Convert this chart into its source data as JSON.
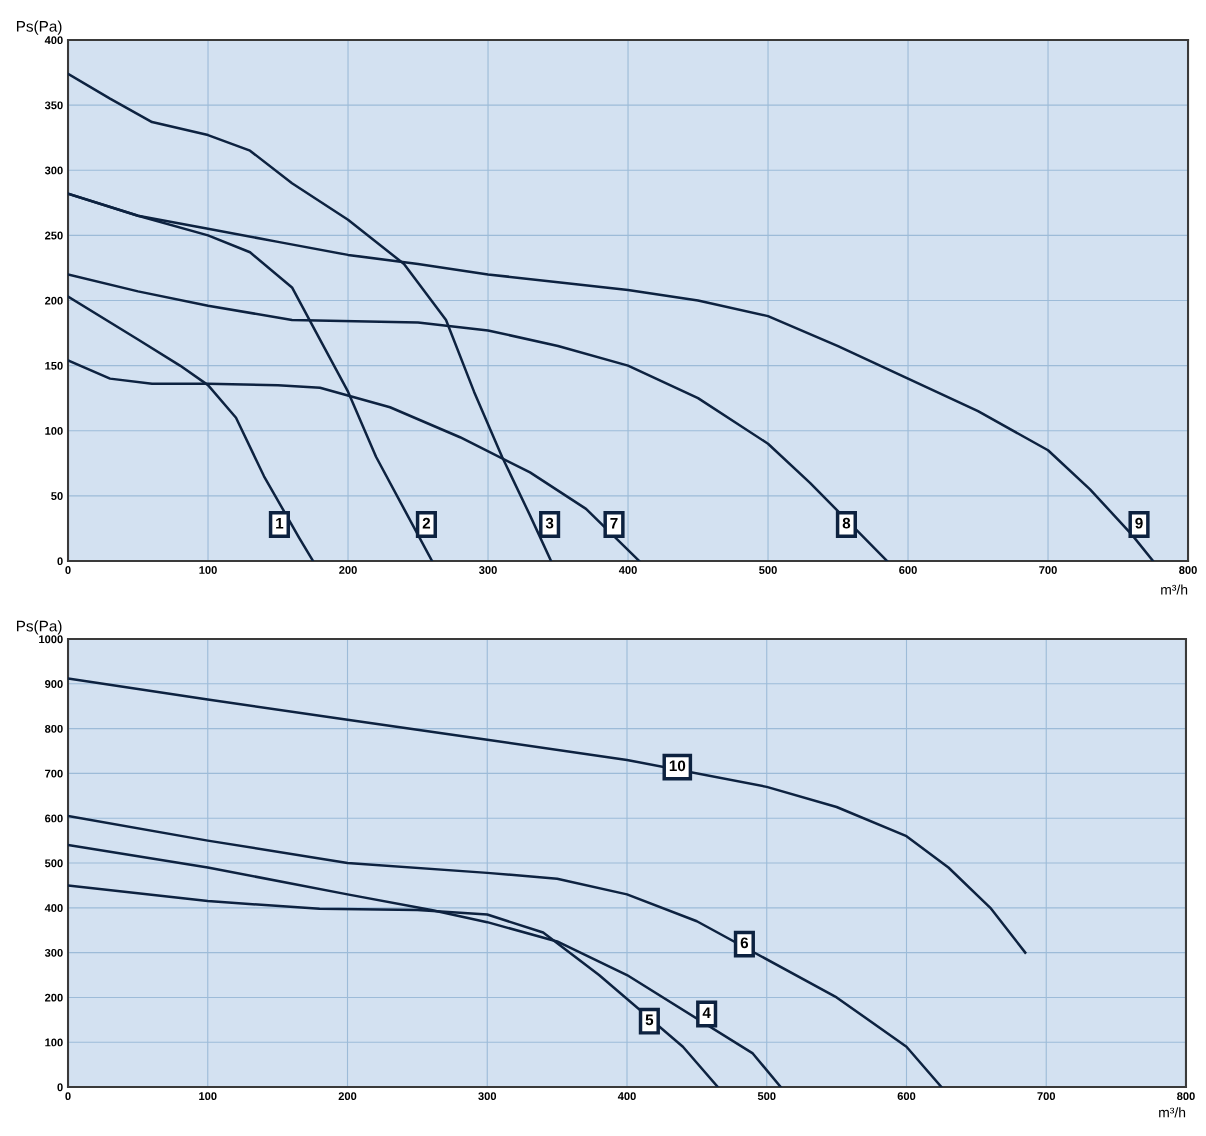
{
  "chart_data": [
    {
      "type": "line",
      "xlabel": "m³/h",
      "ylabel": "Ps(Pa)",
      "xlim": [
        0,
        800
      ],
      "ylim": [
        0,
        400
      ],
      "xticks": [
        0,
        100,
        200,
        300,
        400,
        500,
        600,
        700,
        800
      ],
      "yticks": [
        0,
        50,
        100,
        150,
        200,
        250,
        300,
        350,
        400
      ],
      "grid": true,
      "marker": "none",
      "line_style": "solid",
      "series": [
        {
          "color": "#0d2240",
          "x": [
            0,
            50,
            80,
            100,
            120,
            140,
            165,
            175
          ],
          "values": [
            203,
            170,
            150,
            135,
            110,
            65,
            18,
            0
          ]
        },
        {
          "color": "#0d2240",
          "x": [
            0,
            50,
            100,
            130,
            160,
            180,
            200,
            220,
            240,
            260
          ],
          "values": [
            282,
            265,
            250,
            237,
            210,
            170,
            130,
            80,
            40,
            0
          ]
        },
        {
          "color": "#0d2240",
          "x": [
            0,
            30,
            60,
            100,
            130,
            160,
            200,
            240,
            270,
            290,
            310,
            330,
            345
          ],
          "values": [
            374,
            355,
            337,
            327,
            315,
            290,
            262,
            228,
            185,
            130,
            80,
            35,
            0
          ]
        },
        {
          "color": "#0d2240",
          "x": [
            0,
            30,
            60,
            100,
            150,
            180,
            230,
            280,
            330,
            370,
            408
          ],
          "values": [
            154,
            140,
            136,
            136,
            135,
            133,
            118,
            95,
            68,
            40,
            0
          ]
        },
        {
          "color": "#0d2240",
          "x": [
            0,
            50,
            100,
            160,
            250,
            300,
            350,
            400,
            450,
            500,
            530,
            585
          ],
          "values": [
            220,
            207,
            196,
            185,
            183,
            177,
            165,
            150,
            125,
            90,
            60,
            0
          ]
        },
        {
          "color": "#0d2240",
          "x": [
            0,
            50,
            100,
            150,
            200,
            250,
            300,
            350,
            400,
            450,
            500,
            550,
            600,
            650,
            700,
            730,
            760,
            775
          ],
          "values": [
            282,
            265,
            255,
            245,
            235,
            228,
            220,
            214,
            208,
            200,
            188,
            165,
            140,
            115,
            85,
            55,
            20,
            0
          ]
        }
      ],
      "annotations": [
        {
          "text": "1",
          "x": 151,
          "y": 28
        },
        {
          "text": "2",
          "x": 256,
          "y": 28
        },
        {
          "text": "3",
          "x": 344,
          "y": 28
        },
        {
          "text": "7",
          "x": 390,
          "y": 28
        },
        {
          "text": "8",
          "x": 556,
          "y": 28
        },
        {
          "text": "9",
          "x": 765,
          "y": 28
        }
      ]
    },
    {
      "type": "line",
      "xlabel": "m³/h",
      "ylabel": "Ps(Pa)",
      "xlim": [
        0,
        800
      ],
      "ylim": [
        0,
        1000
      ],
      "xticks": [
        0,
        100,
        200,
        300,
        400,
        500,
        600,
        700,
        800
      ],
      "yticks": [
        0,
        100,
        200,
        300,
        400,
        500,
        600,
        700,
        800,
        900,
        1000
      ],
      "grid": true,
      "marker": "none",
      "line_style": "solid",
      "series": [
        {
          "color": "#0d2240",
          "x": [
            0,
            100,
            200,
            300,
            400,
            500,
            550,
            600,
            630,
            660,
            685
          ],
          "values": [
            912,
            865,
            820,
            775,
            730,
            670,
            625,
            560,
            490,
            400,
            300
          ]
        },
        {
          "color": "#0d2240",
          "x": [
            0,
            100,
            200,
            300,
            350,
            400,
            450,
            550,
            600,
            625
          ],
          "values": [
            605,
            550,
            500,
            478,
            465,
            430,
            370,
            200,
            90,
            0
          ]
        },
        {
          "color": "#0d2240",
          "x": [
            0,
            100,
            200,
            260,
            300,
            350,
            400,
            490,
            510
          ],
          "values": [
            540,
            490,
            430,
            395,
            368,
            325,
            250,
            75,
            0
          ]
        },
        {
          "color": "#0d2240",
          "x": [
            0,
            100,
            180,
            250,
            300,
            340,
            380,
            440,
            465
          ],
          "values": [
            450,
            415,
            398,
            395,
            385,
            345,
            250,
            90,
            0
          ]
        }
      ],
      "annotations": [
        {
          "text": "10",
          "x": 436,
          "y": 714
        },
        {
          "text": "6",
          "x": 484,
          "y": 319
        },
        {
          "text": "4",
          "x": 457,
          "y": 163
        },
        {
          "text": "5",
          "x": 416,
          "y": 147
        }
      ]
    }
  ]
}
